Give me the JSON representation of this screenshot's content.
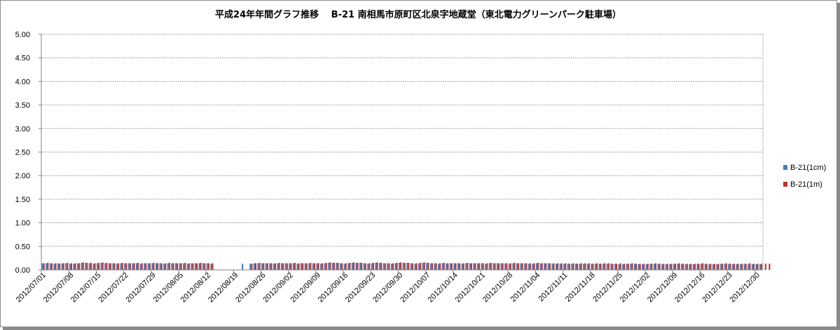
{
  "chart_data": {
    "type": "bar",
    "title": "平成24年年間グラフ推移　 B-21 南相馬市原町区北泉字地蔵堂（東北電力グリーンパーク駐車場）",
    "xlabel": "",
    "ylabel": "",
    "ylim": [
      0,
      5
    ],
    "yticks": [
      "5.00",
      "4.50",
      "4.00",
      "3.50",
      "3.00",
      "2.50",
      "2.00",
      "1.50",
      "1.00",
      "0.50",
      "0.00"
    ],
    "grid": true,
    "legend": "right",
    "x_tick_labels": [
      "2012/07/01",
      "2012/07/08",
      "2012/07/15",
      "2012/07/22",
      "2012/07/29",
      "2012/08/05",
      "2012/08/12",
      "2012/08/19",
      "2012/08/26",
      "2012/09/02",
      "2012/09/09",
      "2012/09/16",
      "2012/09/23",
      "2012/09/30",
      "2012/10/07",
      "2012/10/14",
      "2012/10/21",
      "2012/10/28",
      "2012/11/04",
      "2012/11/11",
      "2012/11/18",
      "2012/11/25",
      "2012/12/02",
      "2012/12/09",
      "2012/12/16",
      "2012/12/23",
      "2012/12/30"
    ],
    "x_start": "2012/07/01",
    "x_end": "2012/12/30",
    "series": [
      {
        "name": "B-21(1cm)",
        "color": "#4a7ebb",
        "values": [
          0.14,
          0.14,
          0.14,
          0.13,
          0.14,
          0.14,
          0.14,
          0.13,
          0.13,
          0.14,
          0.15,
          0.15,
          0.14,
          0.13,
          0.14,
          0.15,
          0.14,
          0.14,
          0.14,
          0.13,
          0.14,
          0.14,
          0.14,
          0.14,
          0.14,
          0.13,
          0.14,
          0.14,
          0.14,
          0.14,
          0.14,
          0.13,
          0.14,
          0.14,
          0.14,
          0.14,
          0.14,
          0.13,
          0.14,
          0.14,
          0.14,
          0.14,
          0.14,
          0.13,
          null,
          null,
          null,
          null,
          null,
          null,
          null,
          0.13,
          null,
          0.13,
          0.14,
          0.14,
          0.14,
          0.14,
          0.14,
          0.13,
          0.14,
          0.14,
          0.14,
          0.14,
          0.14,
          0.13,
          0.14,
          0.14,
          0.14,
          0.14,
          0.14,
          0.13,
          0.14,
          0.15,
          0.15,
          0.15,
          0.14,
          0.13,
          0.14,
          0.15,
          0.15,
          0.15,
          0.14,
          0.13,
          0.14,
          0.15,
          0.15,
          0.14,
          0.14,
          0.13,
          0.14,
          0.15,
          0.15,
          0.15,
          0.14,
          0.13,
          0.14,
          0.15,
          0.15,
          0.14,
          0.14,
          0.13,
          0.14,
          0.14,
          0.14,
          0.14,
          0.14,
          0.13,
          0.14,
          0.14,
          0.14,
          0.14,
          0.14,
          0.13,
          0.14,
          0.14,
          0.14,
          0.14,
          0.14,
          0.13,
          0.14,
          0.14,
          0.14,
          0.14,
          0.13,
          0.13,
          0.14,
          0.14,
          0.14,
          0.14,
          0.13,
          0.13,
          0.13,
          0.13,
          0.13,
          0.13,
          0.13,
          0.13,
          0.13,
          0.13,
          0.13,
          0.13,
          0.13,
          0.13,
          0.13,
          0.13,
          0.13,
          0.12,
          0.12,
          0.13,
          0.13,
          0.13,
          0.12,
          0.12,
          0.12,
          0.13,
          0.13,
          0.13,
          0.12,
          0.12,
          0.12,
          0.13,
          0.13,
          0.13,
          0.12,
          0.12,
          0.12,
          0.13,
          0.13,
          0.13,
          0.12,
          0.12,
          0.12,
          0.13,
          0.13,
          0.13,
          0.12,
          0.12,
          0.12,
          0.13,
          0.13,
          0.12,
          0.12,
          0.12
        ]
      },
      {
        "name": "B-21(1m)",
        "color": "#c0352e",
        "values": [
          0.14,
          0.15,
          0.14,
          0.14,
          0.13,
          0.14,
          0.15,
          0.14,
          0.14,
          0.14,
          0.16,
          0.15,
          0.15,
          0.14,
          0.15,
          0.16,
          0.15,
          0.14,
          0.14,
          0.14,
          0.15,
          0.14,
          0.14,
          0.14,
          0.15,
          0.14,
          0.14,
          0.14,
          0.15,
          0.14,
          0.14,
          0.14,
          0.15,
          0.14,
          0.14,
          0.14,
          0.15,
          0.14,
          0.14,
          0.14,
          0.15,
          0.14,
          0.14,
          0.14,
          null,
          null,
          null,
          null,
          null,
          null,
          null,
          null,
          null,
          0.13,
          0.14,
          0.15,
          0.14,
          0.14,
          0.14,
          0.14,
          0.15,
          0.14,
          0.14,
          0.14,
          0.15,
          0.14,
          0.14,
          0.14,
          0.15,
          0.14,
          0.14,
          0.14,
          0.15,
          0.16,
          0.15,
          0.15,
          0.14,
          0.14,
          0.15,
          0.16,
          0.15,
          0.15,
          0.14,
          0.14,
          0.15,
          0.16,
          0.15,
          0.14,
          0.14,
          0.14,
          0.15,
          0.16,
          0.15,
          0.15,
          0.14,
          0.14,
          0.15,
          0.16,
          0.15,
          0.14,
          0.14,
          0.14,
          0.15,
          0.14,
          0.14,
          0.14,
          0.14,
          0.14,
          0.15,
          0.14,
          0.14,
          0.14,
          0.14,
          0.14,
          0.15,
          0.14,
          0.14,
          0.14,
          0.14,
          0.14,
          0.15,
          0.14,
          0.14,
          0.14,
          0.14,
          0.14,
          0.15,
          0.14,
          0.14,
          0.14,
          0.14,
          0.14,
          0.14,
          0.14,
          0.13,
          0.14,
          0.13,
          0.14,
          0.14,
          0.14,
          0.13,
          0.14,
          0.13,
          0.14,
          0.14,
          0.13,
          0.13,
          0.14,
          0.13,
          0.13,
          0.14,
          0.13,
          0.13,
          0.13,
          0.13,
          0.13,
          0.14,
          0.13,
          0.13,
          0.13,
          0.13,
          0.13,
          0.14,
          0.13,
          0.13,
          0.13,
          0.13,
          0.13,
          0.14,
          0.13,
          0.13,
          0.13,
          0.13,
          0.13,
          0.14,
          0.13,
          0.13,
          0.13,
          0.13,
          0.13,
          0.14,
          0.13,
          0.13,
          0.13,
          0.13,
          0.13
        ]
      }
    ]
  }
}
